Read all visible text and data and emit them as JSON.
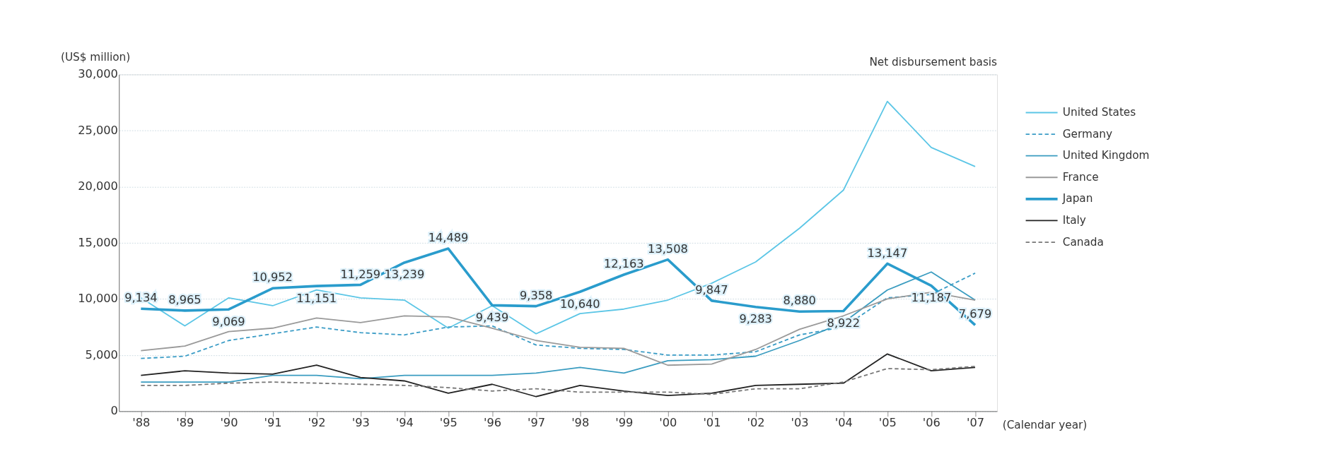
{
  "chart_data": {
    "type": "line",
    "ylabel": "(US$ million)",
    "xlabel": "(Calendar year)",
    "annotations": [
      "Net disbursement basis"
    ],
    "categories": [
      "'88",
      "'89",
      "'90",
      "'91",
      "'92",
      "'93",
      "'94",
      "'95",
      "'96",
      "'97",
      "'98",
      "'99",
      "'00",
      "'01",
      "'02",
      "'03",
      "'04",
      "'05",
      "'06",
      "'07"
    ],
    "ylim": [
      0,
      30000
    ],
    "yticks": [
      {
        "value": 0,
        "label": "0"
      },
      {
        "value": 5000,
        "label": "5,000"
      },
      {
        "value": 10000,
        "label": "10,000"
      },
      {
        "value": 15000,
        "label": "15,000"
      },
      {
        "value": 20000,
        "label": "20,000"
      },
      {
        "value": 25000,
        "label": "25,000"
      },
      {
        "value": 30000,
        "label": "30,000"
      }
    ],
    "grid": "y",
    "legend": "right",
    "marker": "none",
    "series": [
      {
        "name": "United States",
        "color": "#5cc6e6",
        "line_style": "solid",
        "values": [
          10100,
          7600,
          10100,
          9400,
          10800,
          10100,
          9900,
          7400,
          9400,
          6900,
          8700,
          9100,
          9900,
          11400,
          13300,
          16300,
          19700,
          27600,
          23500,
          21800
        ]
      },
      {
        "name": "Germany",
        "color": "#3a9cc6",
        "line_style": "dashed",
        "values": [
          4700,
          4900,
          6300,
          6900,
          7500,
          7000,
          6800,
          7500,
          7600,
          5900,
          5600,
          5500,
          5000,
          5000,
          5300,
          6800,
          7500,
          10100,
          10400,
          12300
        ]
      },
      {
        "name": "United Kingdom",
        "color": "#3a9cc0",
        "line_style": "solid",
        "values": [
          2600,
          2600,
          2600,
          3200,
          3200,
          2900,
          3200,
          3200,
          3200,
          3400,
          3900,
          3400,
          4500,
          4600,
          4900,
          6300,
          7900,
          10800,
          12400,
          9900
        ]
      },
      {
        "name": "France",
        "color": "#9a9a9a",
        "line_style": "solid",
        "values": [
          5400,
          5800,
          7100,
          7400,
          8300,
          7900,
          8500,
          8400,
          7400,
          6300,
          5700,
          5600,
          4100,
          4200,
          5500,
          7300,
          8500,
          10000,
          10600,
          9900
        ]
      },
      {
        "name": "Japan",
        "color": "#2a9ccc",
        "line_style": "solid",
        "values": [
          9134,
          8965,
          9069,
          10952,
          11151,
          11259,
          13239,
          14489,
          9439,
          9358,
          10640,
          12163,
          13508,
          9847,
          9283,
          8880,
          8922,
          13147,
          11187,
          7679
        ],
        "value_labels": [
          "9,134",
          "8,965",
          "9,069",
          "10,952",
          "11,151",
          "11,259",
          "13,239",
          "14,489",
          "9,439",
          "9,358",
          "10,640",
          "12,163",
          "13,508",
          "9,847",
          "9,283",
          "8,880",
          "8,922",
          "13,147",
          "11,187",
          "7,679"
        ]
      },
      {
        "name": "Italy",
        "color": "#222222",
        "line_style": "solid",
        "values": [
          3200,
          3600,
          3400,
          3300,
          4100,
          3000,
          2700,
          1600,
          2400,
          1300,
          2300,
          1800,
          1400,
          1600,
          2300,
          2400,
          2500,
          5100,
          3600,
          3900
        ]
      },
      {
        "name": "Canada",
        "color": "#777777",
        "line_style": "dashed",
        "values": [
          2300,
          2300,
          2500,
          2600,
          2500,
          2400,
          2300,
          2100,
          1800,
          2000,
          1700,
          1700,
          1700,
          1500,
          2000,
          2000,
          2600,
          3800,
          3700,
          4000
        ]
      }
    ]
  }
}
